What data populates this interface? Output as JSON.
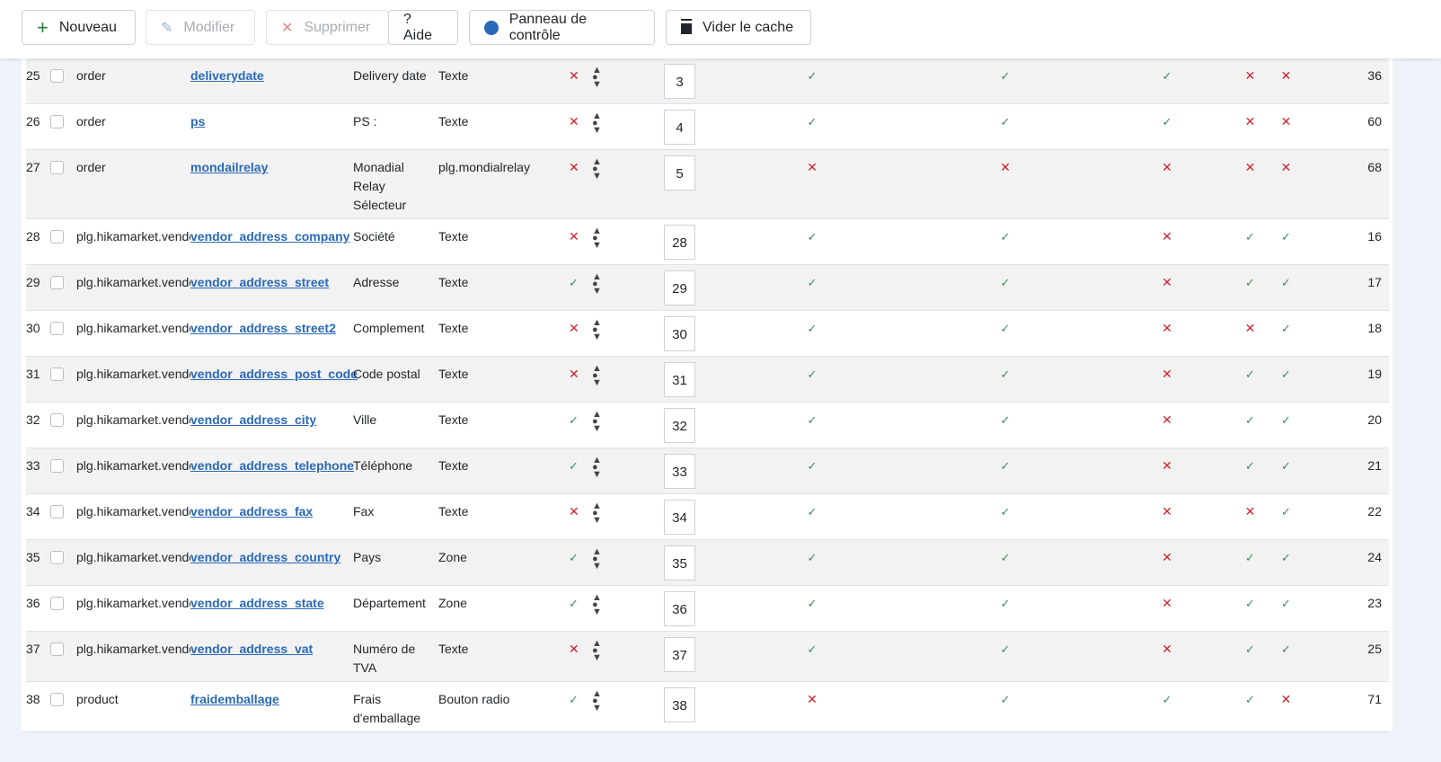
{
  "toolbar": {
    "new": "Nouveau",
    "edit": "Modifier",
    "delete": "Supprimer",
    "help": "? Aide",
    "control_panel": "Panneau de contrôle",
    "clear_cache": "Vider le cache"
  },
  "colors": {
    "check": "#3a8a5a",
    "cross": "#d0232b",
    "link": "#2a69b8"
  },
  "rows": [
    {
      "num": "25",
      "table": "order",
      "name": "deliverydate",
      "label": "Delivery date",
      "type": "Texte",
      "required": false,
      "ordering": "3",
      "flags": [
        true,
        true,
        true,
        false,
        false
      ],
      "id": "36"
    },
    {
      "num": "26",
      "table": "order",
      "name": "ps",
      "label": "PS :",
      "type": "Texte",
      "required": false,
      "ordering": "4",
      "flags": [
        true,
        true,
        true,
        false,
        false
      ],
      "id": "60"
    },
    {
      "num": "27",
      "table": "order",
      "name": "mondailrelay",
      "label": "Monadial Relay Sélecteur",
      "type": "plg.mondialrelay",
      "required": false,
      "ordering": "5",
      "flags": [
        false,
        false,
        false,
        false,
        false
      ],
      "id": "68"
    },
    {
      "num": "28",
      "table": "plg.hikamarket.vendor",
      "name": "vendor_address_company",
      "label": "Société",
      "type": "Texte",
      "required": false,
      "ordering": "28",
      "flags": [
        true,
        true,
        false,
        true,
        true
      ],
      "id": "16"
    },
    {
      "num": "29",
      "table": "plg.hikamarket.vendor",
      "name": "vendor_address_street",
      "label": "Adresse",
      "type": "Texte",
      "required": true,
      "ordering": "29",
      "flags": [
        true,
        true,
        false,
        true,
        true
      ],
      "id": "17"
    },
    {
      "num": "30",
      "table": "plg.hikamarket.vendor",
      "name": "vendor_address_street2",
      "label": "Complement",
      "type": "Texte",
      "required": false,
      "ordering": "30",
      "flags": [
        true,
        true,
        false,
        false,
        true
      ],
      "id": "18"
    },
    {
      "num": "31",
      "table": "plg.hikamarket.vendor",
      "name": "vendor_address_post_code",
      "label": "Code postal",
      "type": "Texte",
      "required": false,
      "ordering": "31",
      "flags": [
        true,
        true,
        false,
        true,
        true
      ],
      "id": "19"
    },
    {
      "num": "32",
      "table": "plg.hikamarket.vendor",
      "name": "vendor_address_city",
      "label": "Ville",
      "type": "Texte",
      "required": true,
      "ordering": "32",
      "flags": [
        true,
        true,
        false,
        true,
        true
      ],
      "id": "20"
    },
    {
      "num": "33",
      "table": "plg.hikamarket.vendor",
      "name": "vendor_address_telephone",
      "label": "Téléphone",
      "type": "Texte",
      "required": true,
      "ordering": "33",
      "flags": [
        true,
        true,
        false,
        true,
        true
      ],
      "id": "21"
    },
    {
      "num": "34",
      "table": "plg.hikamarket.vendor",
      "name": "vendor_address_fax",
      "label": "Fax",
      "type": "Texte",
      "required": false,
      "ordering": "34",
      "flags": [
        true,
        true,
        false,
        false,
        true
      ],
      "id": "22"
    },
    {
      "num": "35",
      "table": "plg.hikamarket.vendor",
      "name": "vendor_address_country",
      "label": "Pays",
      "type": "Zone",
      "required": true,
      "ordering": "35",
      "flags": [
        true,
        true,
        false,
        true,
        true
      ],
      "id": "24"
    },
    {
      "num": "36",
      "table": "plg.hikamarket.vendor",
      "name": "vendor_address_state",
      "label": "Département",
      "type": "Zone",
      "required": true,
      "ordering": "36",
      "flags": [
        true,
        true,
        false,
        true,
        true
      ],
      "id": "23"
    },
    {
      "num": "37",
      "table": "plg.hikamarket.vendor",
      "name": "vendor_address_vat",
      "label": "Numéro de TVA",
      "type": "Texte",
      "required": false,
      "ordering": "37",
      "flags": [
        true,
        true,
        false,
        true,
        true
      ],
      "id": "25"
    },
    {
      "num": "38",
      "table": "product",
      "name": "fraidemballage",
      "label": "Frais d'emballage",
      "type": "Bouton radio",
      "required": true,
      "ordering": "38",
      "flags": [
        false,
        true,
        true,
        true,
        false
      ],
      "id": "71"
    }
  ]
}
